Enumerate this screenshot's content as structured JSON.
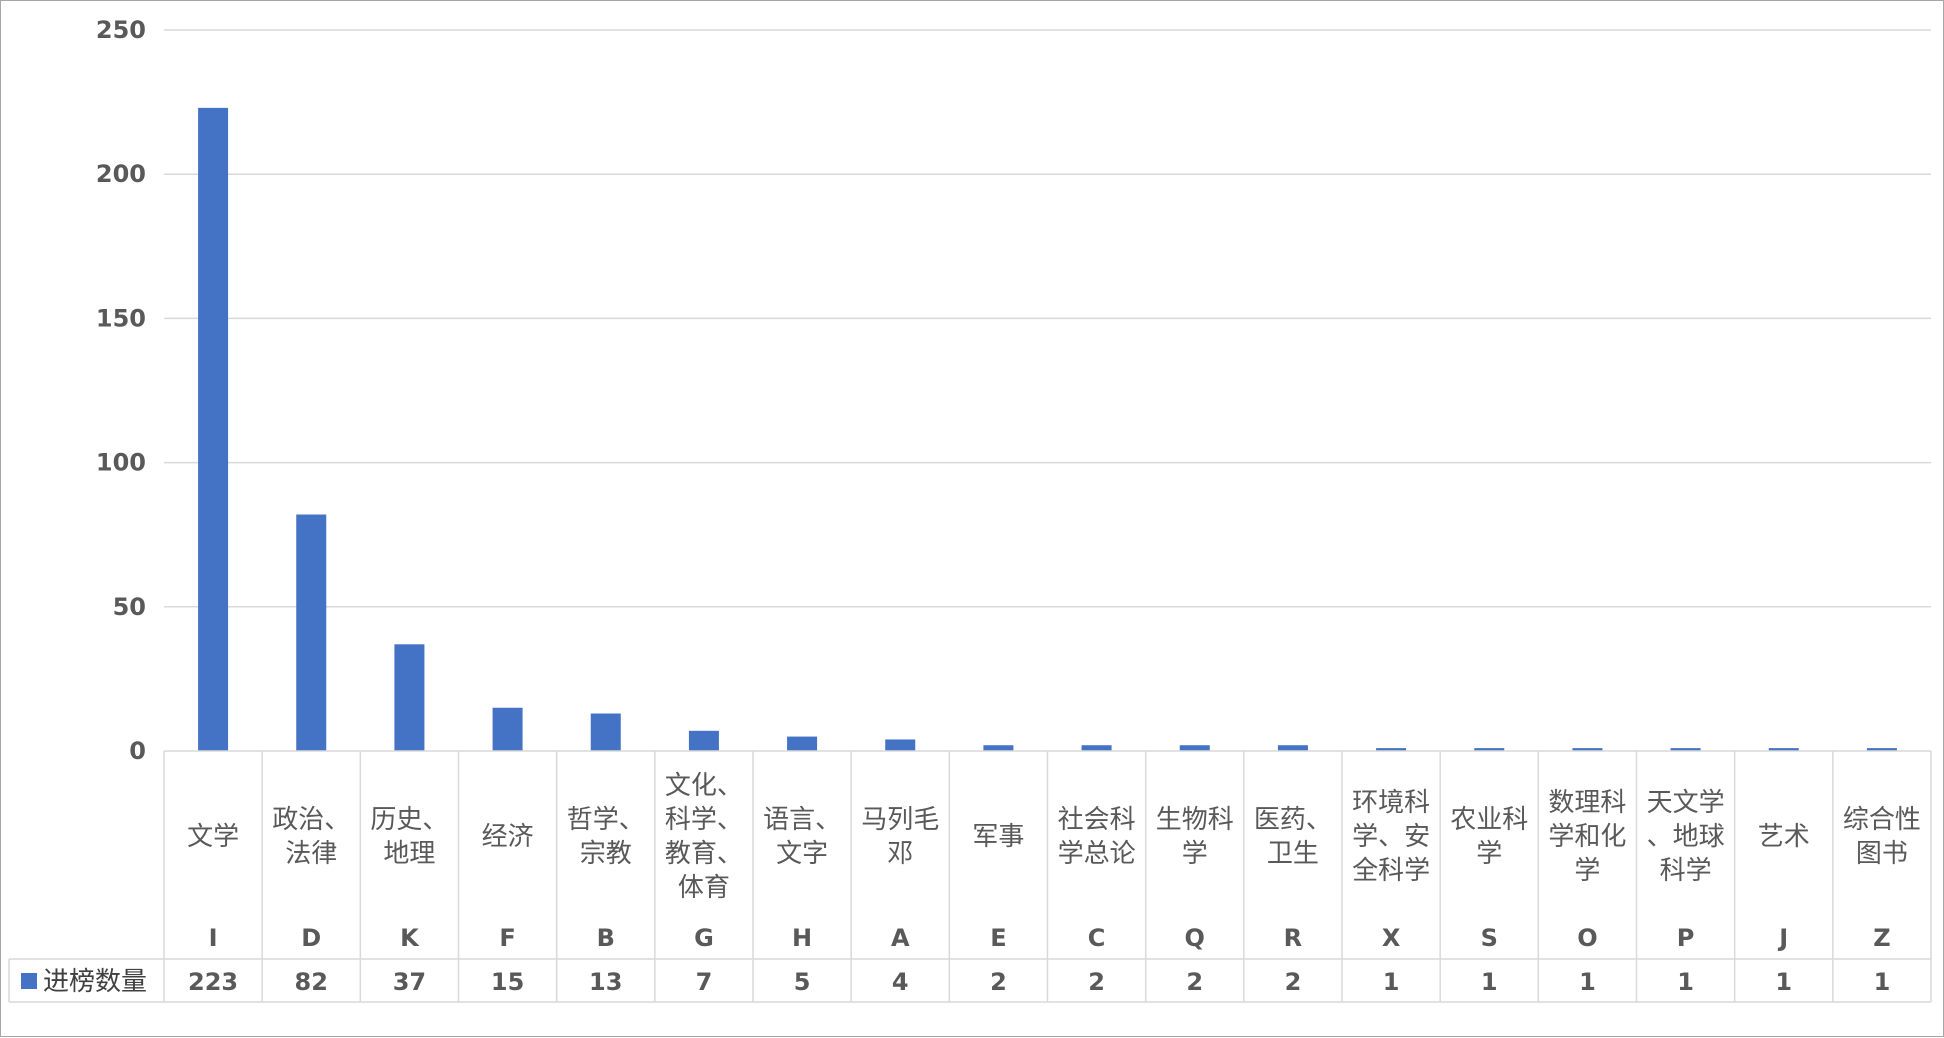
{
  "chart_data": {
    "type": "bar",
    "categories": [
      {
        "name": "文学",
        "code": "I"
      },
      {
        "name": "政治、法律",
        "code": "D"
      },
      {
        "name": "历史、地理",
        "code": "K"
      },
      {
        "name": "经济",
        "code": "F"
      },
      {
        "name": "哲学、宗教",
        "code": "B"
      },
      {
        "name": "文化、科学、教育、体育",
        "code": "G"
      },
      {
        "name": "语言、文字",
        "code": "H"
      },
      {
        "name": "马列毛邓",
        "code": "A"
      },
      {
        "name": "军事",
        "code": "E"
      },
      {
        "name": "社会科学总论",
        "code": "C"
      },
      {
        "name": "生物科学",
        "code": "Q"
      },
      {
        "name": "医药、卫生",
        "code": "R"
      },
      {
        "name": "环境科学、安全科学",
        "code": "X"
      },
      {
        "name": "农业科学",
        "code": "S"
      },
      {
        "name": "数理科学和化学",
        "code": "O"
      },
      {
        "name": "天文学、地球科学",
        "code": "P"
      },
      {
        "name": "艺术",
        "code": "J"
      },
      {
        "name": "综合性图书",
        "code": "Z"
      }
    ],
    "series": [
      {
        "name": "进榜数量",
        "color": "#4472c4",
        "values": [
          223,
          82,
          37,
          15,
          13,
          7,
          5,
          4,
          2,
          2,
          2,
          2,
          1,
          1,
          1,
          1,
          1,
          1
        ]
      }
    ],
    "ylim": [
      0,
      250
    ],
    "yticks": [
      "0",
      "50",
      "100",
      "150",
      "200",
      "250"
    ],
    "grid": true,
    "legend": "data-table-left",
    "title": "",
    "xlabel": "",
    "ylabel": ""
  },
  "colors": {
    "bar": "#4472c4",
    "grid": "#d9d9d9",
    "text": "#595959",
    "border": "#a6a6a6"
  }
}
